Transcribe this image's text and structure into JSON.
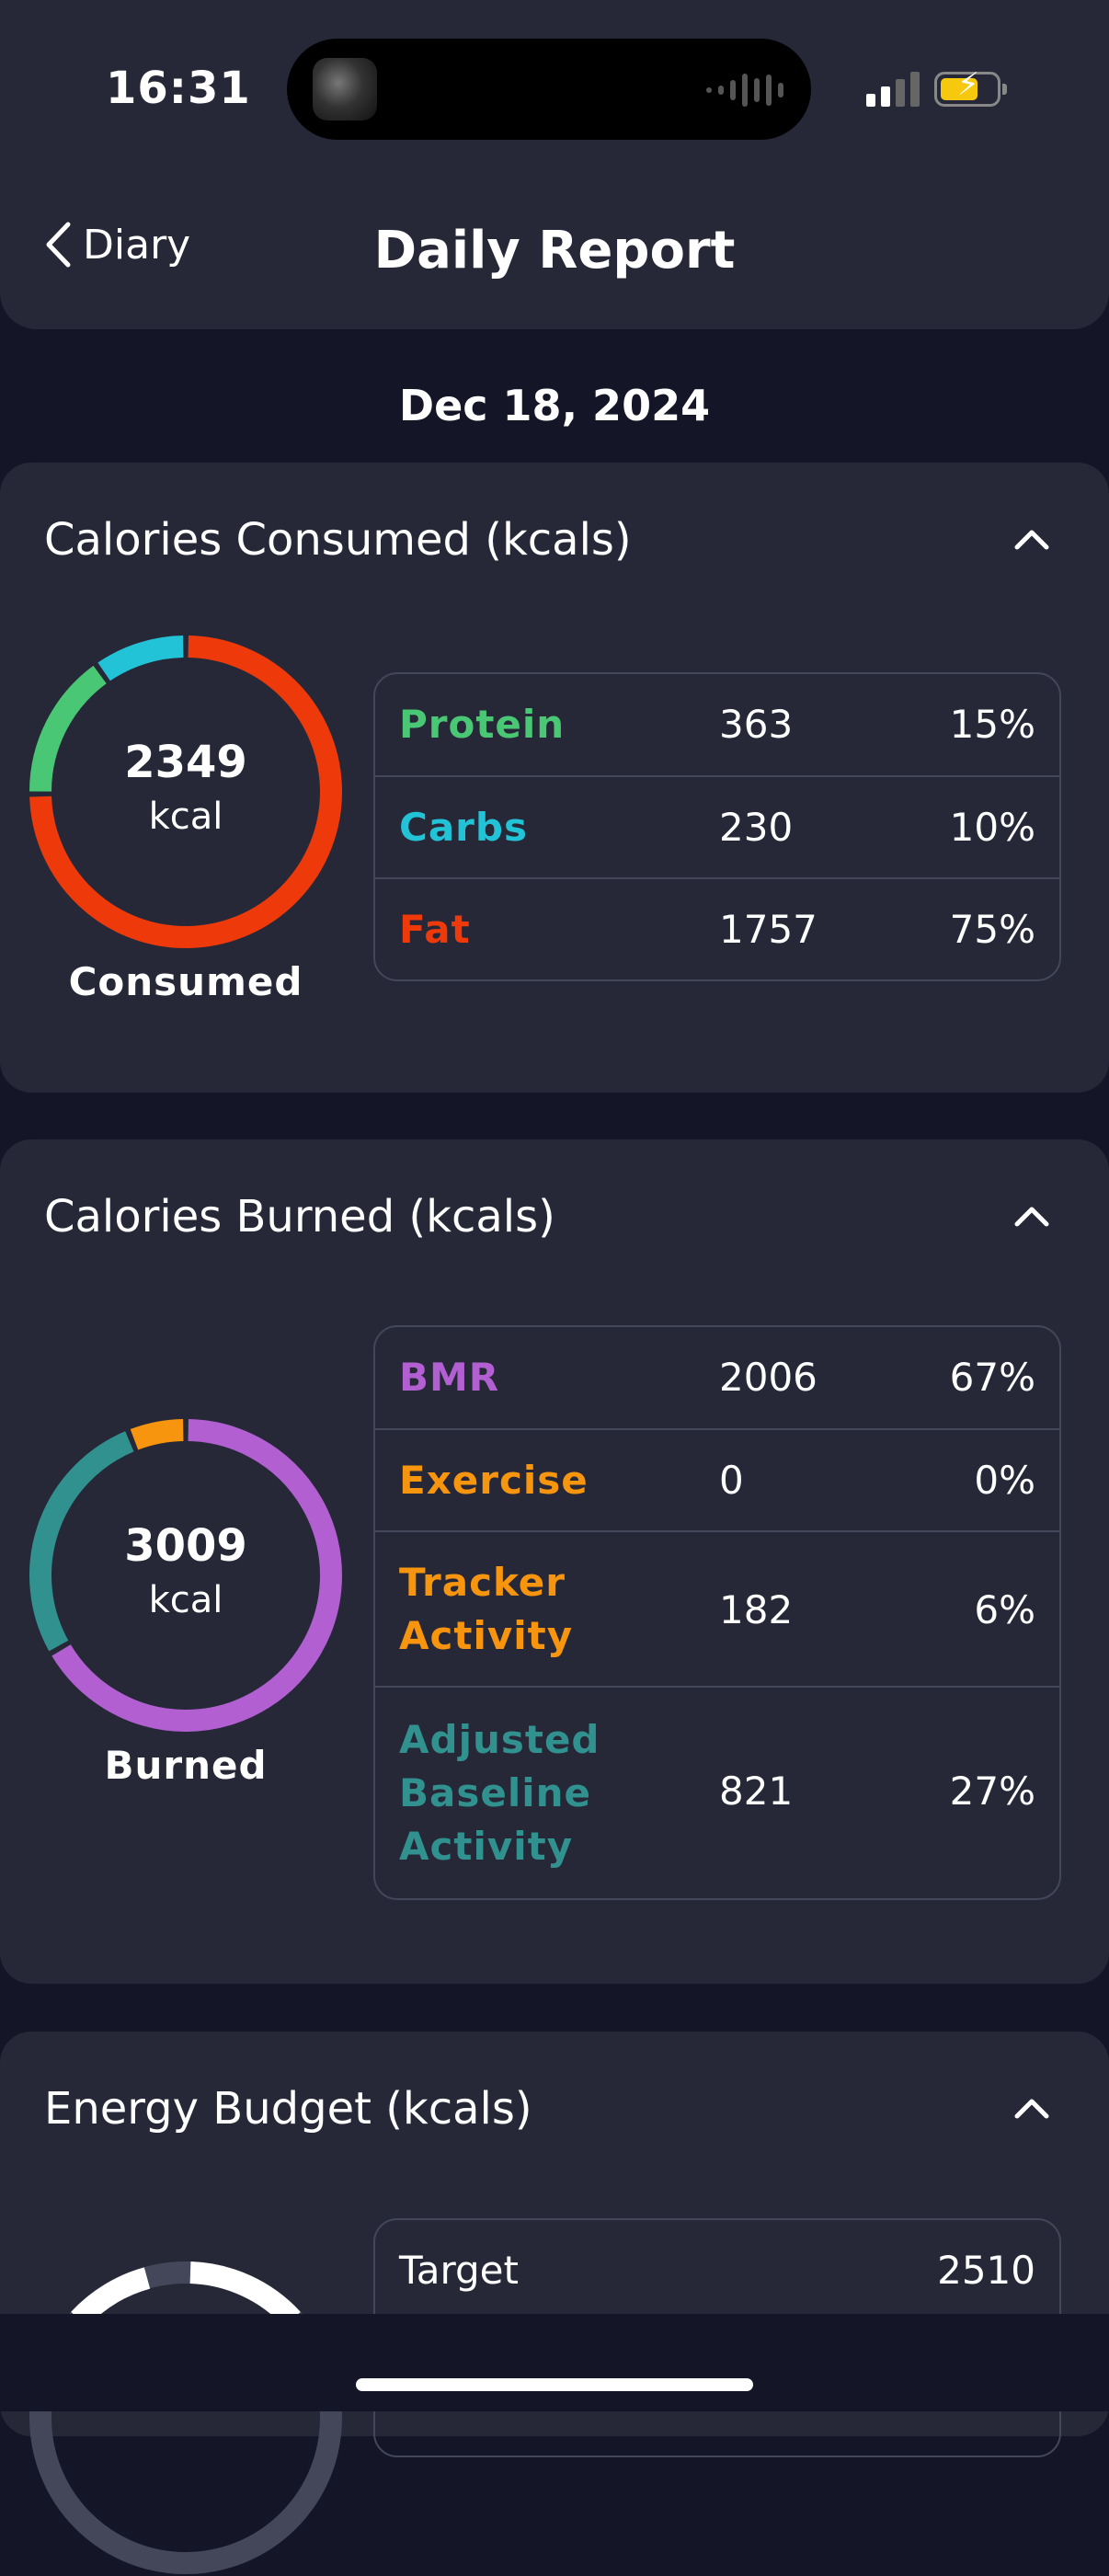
{
  "status_bar": {
    "time": "16:31"
  },
  "header": {
    "back_label": "Diary",
    "title": "Daily Report"
  },
  "date": "Dec 18, 2024",
  "colors": {
    "protein": "#4ac775",
    "carbs": "#22c3d6",
    "fat": "#ee3a0b",
    "bmr": "#b15fd1",
    "exercise": "#f7950e",
    "tracker": "#f7950e",
    "baseline": "#31918e"
  },
  "consumed": {
    "title": "Calories Consumed (kcals)",
    "total": "2349",
    "unit": "kcal",
    "label": "Consumed",
    "rows": [
      {
        "name": "Protein",
        "value": "363",
        "pct": "15%"
      },
      {
        "name": "Carbs",
        "value": "230",
        "pct": "10%"
      },
      {
        "name": "Fat",
        "value": "1757",
        "pct": "75%"
      }
    ]
  },
  "burned": {
    "title": "Calories Burned (kcals)",
    "total": "3009",
    "unit": "kcal",
    "label": "Burned",
    "rows": [
      {
        "name": "BMR",
        "value": "2006",
        "pct": "67%"
      },
      {
        "name": "Exercise",
        "value": "0",
        "pct": "0%"
      },
      {
        "name": "Tracker Activity",
        "value": "182",
        "pct": "6%"
      },
      {
        "name": "Adjusted Baseline Activity",
        "value": "821",
        "pct": "27%"
      }
    ]
  },
  "energy": {
    "title": "Energy Budget (kcals)",
    "rows": [
      {
        "name": "Target",
        "value": "2510"
      }
    ]
  }
}
